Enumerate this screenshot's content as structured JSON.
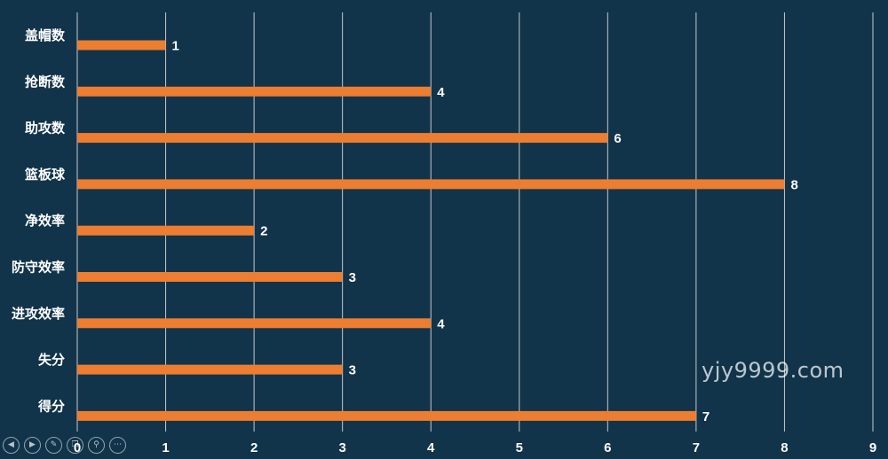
{
  "chart_data": {
    "type": "bar",
    "orientation": "horizontal",
    "categories": [
      "盖帽数",
      "抢断数",
      "助攻数",
      "篮板球",
      "净效率",
      "防守效率",
      "进攻效率",
      "失分",
      "得分"
    ],
    "values": [
      1,
      4,
      6,
      8,
      2,
      3,
      4,
      3,
      7
    ],
    "xlim": [
      0,
      9
    ],
    "xticks": [
      "0",
      "1",
      "2",
      "3",
      "4",
      "5",
      "6",
      "7",
      "8",
      "9"
    ],
    "grid": true,
    "bar_color": "#ed7d31",
    "background_color": "#11344b",
    "gridline_color": "#c8c8c8"
  },
  "watermark": "yjy9999.com",
  "toolbar": [
    {
      "name": "prev-icon",
      "glyph": "◀"
    },
    {
      "name": "next-icon",
      "glyph": "▶"
    },
    {
      "name": "pen-icon",
      "glyph": "✎"
    },
    {
      "name": "copy-icon",
      "glyph": "❐"
    },
    {
      "name": "zoom-icon",
      "glyph": "⚲"
    },
    {
      "name": "more-icon",
      "glyph": "⋯"
    }
  ]
}
